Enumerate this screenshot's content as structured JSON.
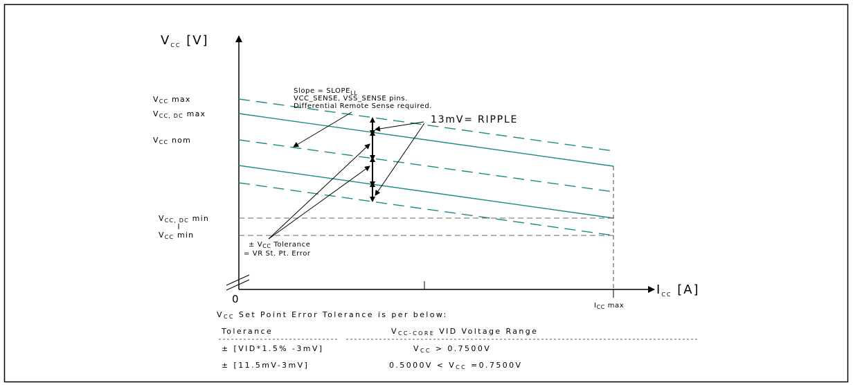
{
  "axes": {
    "y_label": "V",
    "y_label_sub": "CC",
    "y_unit": " [V]",
    "x_label": "I",
    "x_label_sub": "CC",
    "x_unit": " [A]",
    "origin": "0",
    "x_max_label": "I",
    "x_max_sub": "CC",
    "x_max_suffix": " max"
  },
  "y_labels": {
    "vcc_max": {
      "base": "V",
      "sub": "CC",
      "rest": " max"
    },
    "vcc_dc_max": {
      "base": "V",
      "sub": "CC, DC",
      "rest": " max"
    },
    "vcc_nom": {
      "base": "V",
      "sub": "CC",
      "rest": " nom"
    },
    "vcc_dc_min": {
      "base": "V",
      "sub": "CC, DC",
      "rest": " min"
    },
    "vcc_min": {
      "base": "V",
      "sub": "CC",
      "rest": " min"
    }
  },
  "annotations": {
    "slope_line1": "Slope = SLOPE",
    "slope_line1_sub": "LL",
    "slope_line2": "VCC_SENSE, VSS_SENSE pins.",
    "slope_line3": "Differential Remote Sense required.",
    "ripple": "13mV= RIPPLE",
    "tolerance_line1_pre": "± V",
    "tolerance_line1_sub": "CC",
    "tolerance_line1_post": " Tolerance",
    "tolerance_line2": "= VR St. Pt. Error"
  },
  "table": {
    "caption_pre": "V",
    "caption_sub": "CC",
    "caption_post": " Set Point Error Tolerance is per below:",
    "col1_header": "Tolerance",
    "col2_header_pre": "V",
    "col2_header_sub": "CC-CORE",
    "col2_header_post": " VID Voltage Range",
    "rows": [
      {
        "tolerance": "± [VID*1.5% -3mV]",
        "range_pre": "V",
        "range_sub": "CC",
        "range_post": " > 0.7500V"
      },
      {
        "tolerance": "± [11.5mV-3mV]",
        "range_pre": "0.5000V < V",
        "range_sub": "CC",
        "range_post": " =0.7500V"
      }
    ]
  },
  "colors": {
    "teal": "#1a8a82",
    "dashed_gray": "#666666",
    "axis": "#000000"
  }
}
